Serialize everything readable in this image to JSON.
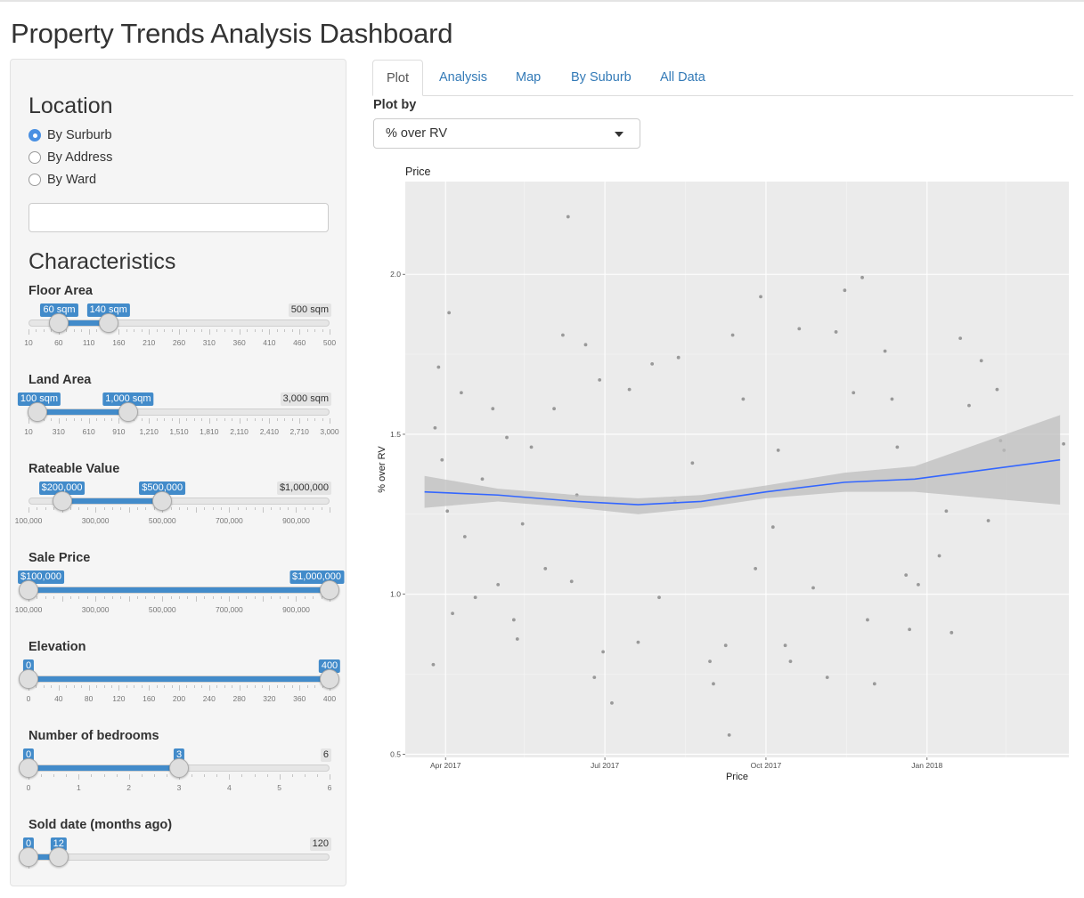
{
  "page": {
    "title": "Property Trends Analysis Dashboard"
  },
  "sidebar": {
    "location": {
      "heading": "Location",
      "options": [
        {
          "label": "By Surburb",
          "checked": true
        },
        {
          "label": "By Address",
          "checked": false
        },
        {
          "label": "By Ward",
          "checked": false
        }
      ],
      "input_value": ""
    },
    "characteristics": {
      "heading": "Characteristics",
      "sliders": [
        {
          "label": "Floor Area",
          "min": 10,
          "max": 500,
          "low": 60,
          "high": 140,
          "low_label": "60 sqm",
          "high_label": "140 sqm",
          "max_label": "500 sqm",
          "ticks": [
            "10",
            "60",
            "110",
            "160",
            "210",
            "260",
            "310",
            "360",
            "410",
            "460",
            "500"
          ]
        },
        {
          "label": "Land Area",
          "min": 10,
          "max": 3000,
          "low": 100,
          "high": 1000,
          "low_label": "100 sqm",
          "high_label": "1,000 sqm",
          "max_label": "3,000 sqm",
          "ticks": [
            "10",
            "310",
            "610",
            "910",
            "1,210",
            "1,510",
            "1,810",
            "2,110",
            "2,410",
            "2,710",
            "3,000"
          ]
        },
        {
          "label": "Rateable Value",
          "min": 100000,
          "max": 1000000,
          "low": 200000,
          "high": 500000,
          "low_label": "$200,000",
          "high_label": "$500,000",
          "max_label": "$1,000,000",
          "ticks": [
            "100,000",
            "",
            "300,000",
            "",
            "500,000",
            "",
            "700,000",
            "",
            "900,000",
            ""
          ]
        },
        {
          "label": "Sale Price",
          "min": 100000,
          "max": 1000000,
          "low": 100000,
          "high": 1000000,
          "low_label": "$100,000",
          "high_label": "$1,000,000",
          "max_label": "",
          "ticks": [
            "100,000",
            "",
            "300,000",
            "",
            "500,000",
            "",
            "700,000",
            "",
            "900,000",
            ""
          ]
        },
        {
          "label": "Elevation",
          "min": 0,
          "max": 400,
          "low": 0,
          "high": 400,
          "low_label": "0",
          "high_label": "400",
          "max_label": "",
          "ticks": [
            "0",
            "40",
            "80",
            "120",
            "160",
            "200",
            "240",
            "280",
            "320",
            "360",
            "400"
          ]
        },
        {
          "label": "Number of bedrooms",
          "min": 0,
          "max": 6,
          "low": 0,
          "high": 3,
          "low_label": "0",
          "high_label": "3",
          "max_label": "6",
          "ticks": [
            "0",
            "1",
            "2",
            "3",
            "4",
            "5",
            "6"
          ]
        },
        {
          "label": "Sold date (months ago)",
          "min": 0,
          "max": 120,
          "low": 0,
          "high": 12,
          "low_label": "0",
          "high_label": "12",
          "max_label": "120",
          "ticks": []
        }
      ]
    }
  },
  "tabs": [
    {
      "label": "Plot",
      "active": true
    },
    {
      "label": "Analysis",
      "active": false
    },
    {
      "label": "Map",
      "active": false
    },
    {
      "label": "By Suburb",
      "active": false
    },
    {
      "label": "All Data",
      "active": false
    }
  ],
  "plot_by": {
    "label": "Plot by",
    "selected": "% over RV"
  },
  "colors": {
    "accent": "#428bca",
    "trend": "#3366ff",
    "panel": "#ebebeb",
    "ribbon": "#bdbdbd"
  },
  "chart_data": {
    "type": "scatter",
    "title": "Price",
    "xlabel": "Price",
    "ylabel": "% over RV",
    "x_type": "date",
    "xlim": [
      "2017-03-09",
      "2018-03-23"
    ],
    "ylim": [
      0.49,
      2.29
    ],
    "x_ticks": [
      {
        "date": "2017-04-01",
        "label": "Apr 2017"
      },
      {
        "date": "2017-07-01",
        "label": "Jul 2017"
      },
      {
        "date": "2017-10-01",
        "label": "Oct 2017"
      },
      {
        "date": "2018-01-01",
        "label": "Jan 2018"
      }
    ],
    "y_ticks": [
      0.5,
      1.0,
      1.5,
      2.0
    ],
    "y_tick_labels": [
      "0.5",
      "1.0",
      "1.5",
      "2.0"
    ],
    "grid": true,
    "trend": {
      "method": "loess",
      "points": [
        {
          "x": "2017-03-20",
          "y": 1.32
        },
        {
          "x": "2017-05-01",
          "y": 1.31
        },
        {
          "x": "2017-06-15",
          "y": 1.29
        },
        {
          "x": "2017-07-20",
          "y": 1.28
        },
        {
          "x": "2017-08-25",
          "y": 1.29
        },
        {
          "x": "2017-10-01",
          "y": 1.32
        },
        {
          "x": "2017-11-15",
          "y": 1.35
        },
        {
          "x": "2017-12-25",
          "y": 1.36
        },
        {
          "x": "2018-03-18",
          "y": 1.42
        }
      ],
      "band_low": [
        1.27,
        1.29,
        1.27,
        1.25,
        1.27,
        1.3,
        1.32,
        1.32,
        1.28
      ],
      "band_high": [
        1.37,
        1.33,
        1.31,
        1.3,
        1.31,
        1.34,
        1.38,
        1.4,
        1.56
      ]
    },
    "points": [
      {
        "x": "2017-03-25",
        "y": 0.78
      },
      {
        "x": "2017-03-28",
        "y": 1.71
      },
      {
        "x": "2017-04-03",
        "y": 1.88
      },
      {
        "x": "2017-04-05",
        "y": 0.94
      },
      {
        "x": "2017-03-30",
        "y": 1.42
      },
      {
        "x": "2017-04-02",
        "y": 1.26
      },
      {
        "x": "2017-04-10",
        "y": 1.63
      },
      {
        "x": "2017-04-12",
        "y": 1.18
      },
      {
        "x": "2017-03-26",
        "y": 1.52
      },
      {
        "x": "2017-04-18",
        "y": 0.99
      },
      {
        "x": "2017-04-22",
        "y": 1.36
      },
      {
        "x": "2017-05-01",
        "y": 1.03
      },
      {
        "x": "2017-05-06",
        "y": 1.49
      },
      {
        "x": "2017-05-10",
        "y": 0.92
      },
      {
        "x": "2017-05-12",
        "y": 0.86
      },
      {
        "x": "2017-05-15",
        "y": 1.22
      },
      {
        "x": "2017-05-20",
        "y": 1.46
      },
      {
        "x": "2017-05-28",
        "y": 1.08
      },
      {
        "x": "2017-06-02",
        "y": 1.58
      },
      {
        "x": "2017-06-07",
        "y": 1.81
      },
      {
        "x": "2017-06-10",
        "y": 2.18
      },
      {
        "x": "2017-06-12",
        "y": 1.04
      },
      {
        "x": "2017-06-20",
        "y": 1.78
      },
      {
        "x": "2017-06-25",
        "y": 0.74
      },
      {
        "x": "2017-06-30",
        "y": 0.82
      },
      {
        "x": "2017-06-28",
        "y": 1.67
      },
      {
        "x": "2017-07-05",
        "y": 0.66
      },
      {
        "x": "2017-07-15",
        "y": 1.64
      },
      {
        "x": "2017-07-20",
        "y": 0.85
      },
      {
        "x": "2017-07-28",
        "y": 1.72
      },
      {
        "x": "2017-08-01",
        "y": 0.99
      },
      {
        "x": "2017-08-10",
        "y": 1.29
      },
      {
        "x": "2017-08-20",
        "y": 1.41
      },
      {
        "x": "2017-08-30",
        "y": 0.79
      },
      {
        "x": "2017-09-01",
        "y": 0.72
      },
      {
        "x": "2017-09-08",
        "y": 0.84
      },
      {
        "x": "2017-09-10",
        "y": 0.56
      },
      {
        "x": "2017-09-12",
        "y": 1.81
      },
      {
        "x": "2017-09-18",
        "y": 1.61
      },
      {
        "x": "2017-09-25",
        "y": 1.08
      },
      {
        "x": "2017-09-28",
        "y": 1.93
      },
      {
        "x": "2017-10-05",
        "y": 1.21
      },
      {
        "x": "2017-10-12",
        "y": 0.84
      },
      {
        "x": "2017-10-15",
        "y": 0.79
      },
      {
        "x": "2017-10-20",
        "y": 1.83
      },
      {
        "x": "2017-10-28",
        "y": 1.02
      },
      {
        "x": "2017-11-05",
        "y": 0.74
      },
      {
        "x": "2017-11-10",
        "y": 1.82
      },
      {
        "x": "2017-11-15",
        "y": 1.95
      },
      {
        "x": "2017-11-20",
        "y": 1.63
      },
      {
        "x": "2017-11-25",
        "y": 1.99
      },
      {
        "x": "2017-11-28",
        "y": 0.92
      },
      {
        "x": "2017-12-02",
        "y": 0.72
      },
      {
        "x": "2017-12-08",
        "y": 1.76
      },
      {
        "x": "2017-12-15",
        "y": 1.46
      },
      {
        "x": "2017-12-20",
        "y": 1.06
      },
      {
        "x": "2017-12-22",
        "y": 0.89
      },
      {
        "x": "2017-12-27",
        "y": 1.03
      },
      {
        "x": "2018-01-08",
        "y": 1.12
      },
      {
        "x": "2018-01-12",
        "y": 1.26
      },
      {
        "x": "2018-01-15",
        "y": 0.88
      },
      {
        "x": "2018-01-20",
        "y": 1.8
      },
      {
        "x": "2018-01-25",
        "y": 1.59
      },
      {
        "x": "2018-02-01",
        "y": 1.73
      },
      {
        "x": "2018-02-05",
        "y": 1.23
      },
      {
        "x": "2018-02-10",
        "y": 1.64
      },
      {
        "x": "2018-02-14",
        "y": 1.45
      },
      {
        "x": "2018-03-20",
        "y": 1.47
      },
      {
        "x": "2018-02-12",
        "y": 1.48
      },
      {
        "x": "2017-04-28",
        "y": 1.58
      },
      {
        "x": "2017-06-15",
        "y": 1.31
      },
      {
        "x": "2017-08-12",
        "y": 1.74
      },
      {
        "x": "2017-10-08",
        "y": 1.45
      },
      {
        "x": "2017-12-12",
        "y": 1.61
      }
    ]
  }
}
